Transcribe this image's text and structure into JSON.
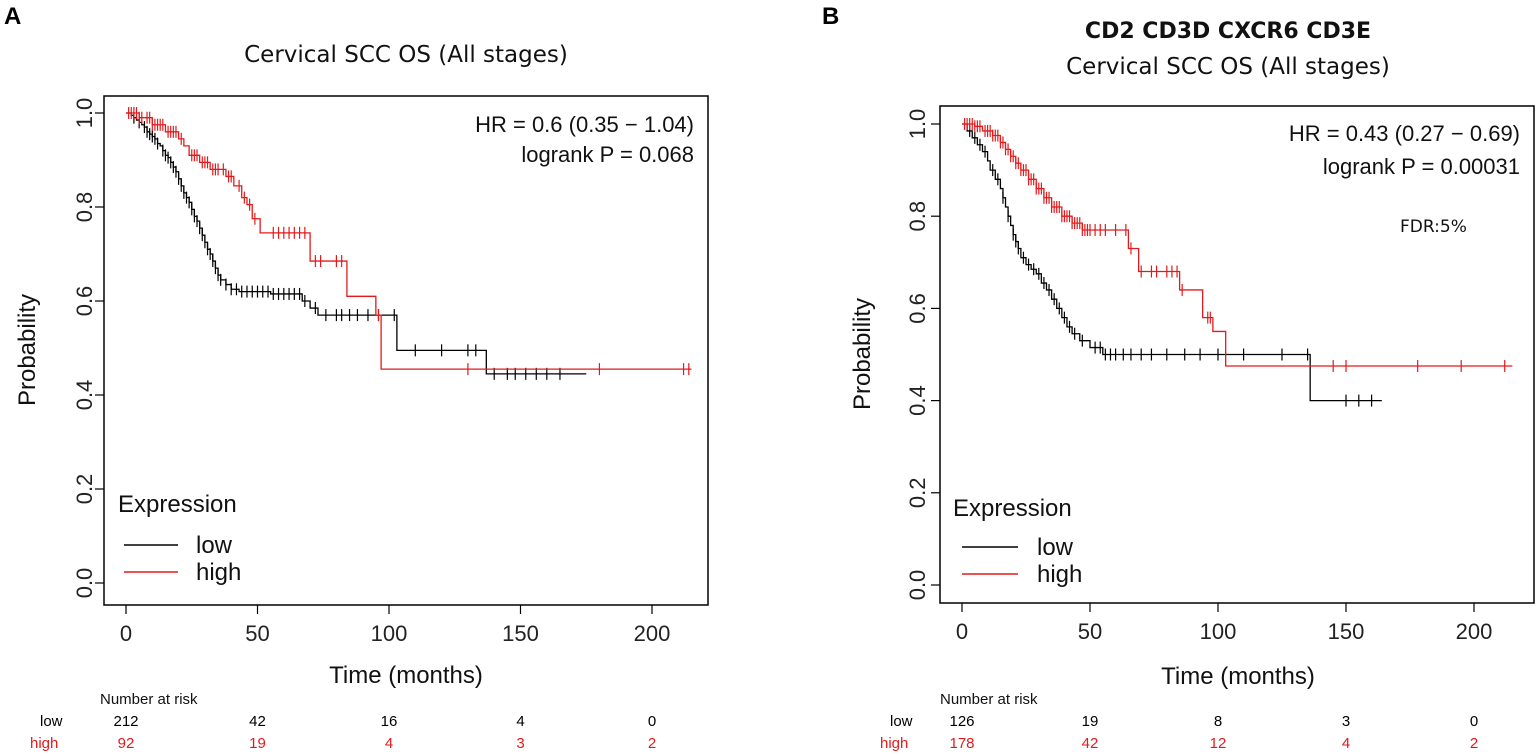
{
  "chart_data": [
    {
      "type": "line",
      "panel": "A",
      "title": "Cervical SCC OS (All stages)",
      "xlabel": "Time (months)",
      "ylabel": "Probability",
      "xlim": [
        0,
        215
      ],
      "ylim": [
        0,
        1.0
      ],
      "xticks": [
        "0",
        "50",
        "100",
        "150",
        "200"
      ],
      "yticks": [
        "0.0",
        "0.2",
        "0.4",
        "0.6",
        "0.8",
        "1.0"
      ],
      "hr_text": "HR = 0.6 (0.35 − 1.04)",
      "p_text": "logrank P = 0.068",
      "legend": {
        "title": "Expression",
        "items": [
          "low",
          "high"
        ],
        "position": "bottom-left"
      },
      "series": [
        {
          "name": "low",
          "color": "#000000",
          "steps": [
            [
              0,
              1.0
            ],
            [
              2,
              0.995
            ],
            [
              3,
              0.99
            ],
            [
              4,
              0.985
            ],
            [
              5,
              0.98
            ],
            [
              6,
              0.975
            ],
            [
              7,
              0.97
            ],
            [
              8,
              0.96
            ],
            [
              9,
              0.955
            ],
            [
              10,
              0.95
            ],
            [
              11,
              0.945
            ],
            [
              12,
              0.935
            ],
            [
              13,
              0.93
            ],
            [
              14,
              0.92
            ],
            [
              15,
              0.91
            ],
            [
              16,
              0.905
            ],
            [
              17,
              0.895
            ],
            [
              18,
              0.885
            ],
            [
              19,
              0.875
            ],
            [
              20,
              0.86
            ],
            [
              21,
              0.845
            ],
            [
              22,
              0.83
            ],
            [
              23,
              0.82
            ],
            [
              24,
              0.81
            ],
            [
              25,
              0.795
            ],
            [
              26,
              0.78
            ],
            [
              27,
              0.77
            ],
            [
              28,
              0.755
            ],
            [
              29,
              0.74
            ],
            [
              30,
              0.725
            ],
            [
              31,
              0.71
            ],
            [
              32,
              0.7
            ],
            [
              33,
              0.685
            ],
            [
              34,
              0.67
            ],
            [
              35,
              0.655
            ],
            [
              36,
              0.645
            ],
            [
              38,
              0.635
            ],
            [
              40,
              0.625
            ],
            [
              43,
              0.62
            ],
            [
              55,
              0.615
            ],
            [
              67,
              0.6
            ],
            [
              70,
              0.585
            ],
            [
              73,
              0.57
            ],
            [
              103,
              0.495
            ],
            [
              137,
              0.445
            ],
            [
              175,
              0.445
            ]
          ],
          "censor_times": [
            3,
            5,
            7,
            8,
            9,
            10,
            11,
            12,
            14,
            15,
            16,
            17,
            18,
            19,
            20,
            21,
            22,
            23,
            24,
            25,
            26,
            27,
            28,
            29,
            30,
            31,
            32,
            33,
            34,
            35,
            36,
            38,
            40,
            42,
            44,
            46,
            48,
            50,
            52,
            54,
            56,
            58,
            60,
            62,
            64,
            66,
            68,
            72,
            76,
            80,
            82,
            85,
            88,
            92,
            96,
            102,
            110,
            120,
            130,
            133,
            140,
            145,
            148,
            152,
            156,
            160,
            165
          ]
        },
        {
          "name": "high",
          "color": "#e31a1c",
          "steps": [
            [
              0,
              1.0
            ],
            [
              5,
              0.99
            ],
            [
              10,
              0.975
            ],
            [
              15,
              0.96
            ],
            [
              20,
              0.945
            ],
            [
              22,
              0.93
            ],
            [
              24,
              0.91
            ],
            [
              28,
              0.895
            ],
            [
              32,
              0.88
            ],
            [
              38,
              0.865
            ],
            [
              41,
              0.845
            ],
            [
              44,
              0.82
            ],
            [
              46,
              0.805
            ],
            [
              48,
              0.775
            ],
            [
              51,
              0.745
            ],
            [
              70,
              0.685
            ],
            [
              84,
              0.61
            ],
            [
              95,
              0.57
            ],
            [
              97,
              0.455
            ],
            [
              215,
              0.455
            ]
          ],
          "censor_times": [
            1,
            2,
            3,
            4,
            5,
            6,
            8,
            9,
            10,
            11,
            12,
            13,
            14,
            16,
            17,
            18,
            19,
            21,
            25,
            26,
            27,
            29,
            30,
            31,
            33,
            34,
            35,
            37,
            39,
            40,
            43,
            45,
            47,
            49,
            56,
            58,
            60,
            62,
            64,
            66,
            68,
            72,
            74,
            80,
            82,
            96,
            130,
            180,
            212,
            214
          ]
        }
      ],
      "risk_table": {
        "header": "Number at risk",
        "times": [
          0,
          50,
          100,
          150,
          200
        ],
        "rows": [
          {
            "label": "low",
            "color": "#000000",
            "values": [
              "212",
              "42",
              "16",
              "4",
              "0"
            ]
          },
          {
            "label": "high",
            "color": "#e31a1c",
            "values": [
              "92",
              "19",
              "4",
              "3",
              "2"
            ]
          }
        ]
      }
    },
    {
      "type": "line",
      "panel": "B",
      "title_genes": "CD2 CD3D CXCR6 CD3E",
      "title": "Cervical SCC OS (All stages)",
      "xlabel": "Time (months)",
      "ylabel": "Probability",
      "xlim": [
        0,
        215
      ],
      "ylim": [
        0,
        1.0
      ],
      "xticks": [
        "0",
        "50",
        "100",
        "150",
        "200"
      ],
      "yticks": [
        "0.0",
        "0.2",
        "0.4",
        "0.6",
        "0.8",
        "1.0"
      ],
      "hr_text": "HR = 0.43 (0.27 − 0.69)",
      "p_text": "logrank P = 0.00031",
      "fdr_text": "FDR:5%",
      "legend": {
        "title": "Expression",
        "items": [
          "low",
          "high"
        ],
        "position": "bottom-left"
      },
      "series": [
        {
          "name": "low",
          "color": "#000000",
          "steps": [
            [
              0,
              1.0
            ],
            [
              2,
              0.985
            ],
            [
              4,
              0.97
            ],
            [
              6,
              0.955
            ],
            [
              8,
              0.94
            ],
            [
              10,
              0.92
            ],
            [
              11,
              0.9
            ],
            [
              13,
              0.88
            ],
            [
              15,
              0.86
            ],
            [
              16,
              0.84
            ],
            [
              17,
              0.82
            ],
            [
              18,
              0.8
            ],
            [
              19,
              0.78
            ],
            [
              20,
              0.76
            ],
            [
              21,
              0.745
            ],
            [
              22,
              0.73
            ],
            [
              23,
              0.71
            ],
            [
              25,
              0.695
            ],
            [
              27,
              0.685
            ],
            [
              29,
              0.675
            ],
            [
              31,
              0.655
            ],
            [
              33,
              0.64
            ],
            [
              35,
              0.62
            ],
            [
              37,
              0.6
            ],
            [
              39,
              0.58
            ],
            [
              41,
              0.56
            ],
            [
              43,
              0.545
            ],
            [
              46,
              0.53
            ],
            [
              50,
              0.515
            ],
            [
              55,
              0.5
            ],
            [
              136,
              0.4
            ],
            [
              164,
              0.4
            ]
          ],
          "censor_times": [
            3,
            5,
            7,
            9,
            12,
            14,
            16,
            18,
            20,
            21,
            22,
            24,
            26,
            28,
            30,
            32,
            34,
            36,
            38,
            40,
            42,
            44,
            47,
            52,
            54,
            56,
            58,
            60,
            63,
            66,
            70,
            74,
            80,
            87,
            93,
            100,
            110,
            125,
            135,
            150,
            155,
            160
          ]
        },
        {
          "name": "high",
          "color": "#e31a1c",
          "steps": [
            [
              0,
              1.0
            ],
            [
              5,
              0.995
            ],
            [
              8,
              0.985
            ],
            [
              12,
              0.975
            ],
            [
              15,
              0.96
            ],
            [
              17,
              0.945
            ],
            [
              19,
              0.93
            ],
            [
              21,
              0.915
            ],
            [
              23,
              0.9
            ],
            [
              26,
              0.88
            ],
            [
              29,
              0.86
            ],
            [
              32,
              0.84
            ],
            [
              35,
              0.82
            ],
            [
              39,
              0.8
            ],
            [
              43,
              0.785
            ],
            [
              47,
              0.77
            ],
            [
              65,
              0.73
            ],
            [
              69,
              0.68
            ],
            [
              85,
              0.64
            ],
            [
              94,
              0.58
            ],
            [
              98,
              0.55
            ],
            [
              103,
              0.475
            ],
            [
              215,
              0.475
            ]
          ],
          "censor_times": [
            1,
            2,
            3,
            4,
            5,
            6,
            7,
            9,
            10,
            11,
            12,
            13,
            14,
            15,
            16,
            17,
            18,
            19,
            20,
            21,
            22,
            23,
            24,
            25,
            26,
            27,
            28,
            29,
            30,
            31,
            32,
            33,
            34,
            35,
            36,
            37,
            38,
            39,
            40,
            41,
            42,
            43,
            44,
            45,
            46,
            47,
            48,
            49,
            50,
            52,
            54,
            56,
            60,
            64,
            66,
            70,
            74,
            76,
            80,
            82,
            84,
            86,
            96,
            97,
            145,
            150,
            178,
            195,
            212
          ]
        }
      ],
      "risk_table": {
        "header": "Number at risk",
        "times": [
          0,
          50,
          100,
          150,
          200
        ],
        "rows": [
          {
            "label": "low",
            "color": "#000000",
            "values": [
              "126",
              "19",
              "8",
              "3",
              "0"
            ]
          },
          {
            "label": "high",
            "color": "#e31a1c",
            "values": [
              "178",
              "42",
              "12",
              "4",
              "2"
            ]
          }
        ]
      }
    }
  ]
}
